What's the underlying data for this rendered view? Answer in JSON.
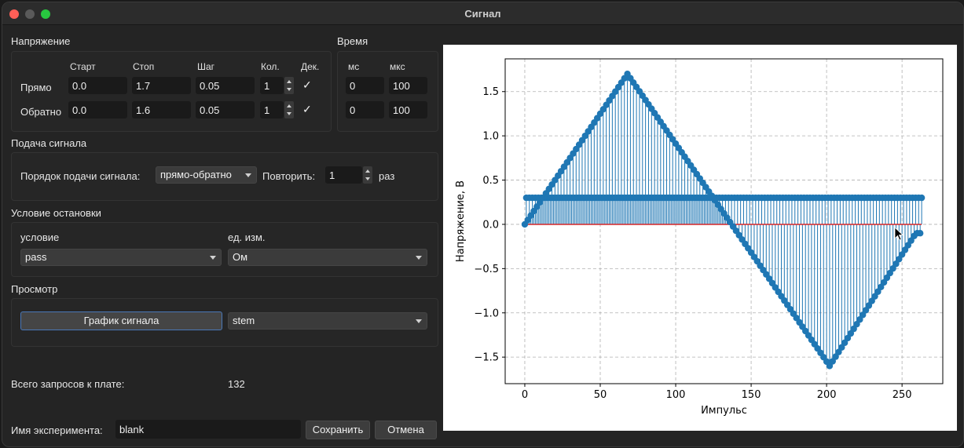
{
  "window": {
    "title": "Сигнал"
  },
  "voltage": {
    "title": "Напряжение",
    "headers": {
      "start": "Старт",
      "stop": "Стоп",
      "step": "Шаг",
      "count": "Кол.",
      "dec": "Дек."
    },
    "rows": [
      {
        "label": "Прямо",
        "start": "0.0",
        "stop": "1.7",
        "step": "0.05",
        "count": "1",
        "dec": "✓"
      },
      {
        "label": "Обратно",
        "start": "0.0",
        "stop": "1.6",
        "step": "0.05",
        "count": "1",
        "dec": "✓"
      }
    ]
  },
  "time": {
    "title": "Время",
    "headers": {
      "ms": "мс",
      "us": "мкс"
    },
    "rows": [
      {
        "ms": "0",
        "us": "100"
      },
      {
        "ms": "0",
        "us": "100"
      }
    ]
  },
  "signal_feed": {
    "title": "Подача сигнала",
    "order_label": "Порядок подачи сигнала:",
    "order_value": "прямо-обратно",
    "repeat_label": "Повторить:",
    "repeat_value": "1",
    "repeat_unit": "раз"
  },
  "stop_condition": {
    "title": "Условие остановки",
    "condition_label": "условие",
    "condition_value": "pass",
    "unit_label": "ед. изм.",
    "unit_value": "Ом"
  },
  "preview": {
    "title": "Просмотр",
    "button_label": "График сигнала",
    "plot_type": "stem"
  },
  "requests": {
    "label": "Всего запросов к плате:",
    "value": "132"
  },
  "experiment": {
    "name_label": "Имя эксперимента:",
    "name_value": "blank",
    "save_label": "Сохранить",
    "cancel_label": "Отмена"
  },
  "colors": {
    "stem": "#1f77b4",
    "baseline": "#d62728",
    "accent": "#4a78b8"
  },
  "chart_data": {
    "type": "stem",
    "title": "",
    "xlabel": "Импульс",
    "ylabel": "Напряжение, В",
    "xlim": [
      -13,
      277
    ],
    "ylim": [
      -1.8,
      1.87
    ],
    "x_ticks": [
      0,
      50,
      100,
      150,
      200,
      250
    ],
    "y_ticks": [
      -1.5,
      -1.0,
      -0.5,
      0.0,
      0.5,
      1.0,
      1.5
    ],
    "x_tick_labels": [
      "0",
      "50",
      "100",
      "150",
      "200",
      "250"
    ],
    "y_tick_labels": [
      "−1.5",
      "−1.0",
      "−0.5",
      "0.0",
      "0.5",
      "1.0",
      "1.5"
    ],
    "grid": true,
    "baseline": 0.0,
    "n_points": 264,
    "read_voltage": 0.3,
    "sweep": {
      "forward_peak": 1.7,
      "forward_peak_index": 68,
      "reverse_peak": -1.6,
      "reverse_peak_index": 202,
      "step": 0.05
    }
  }
}
